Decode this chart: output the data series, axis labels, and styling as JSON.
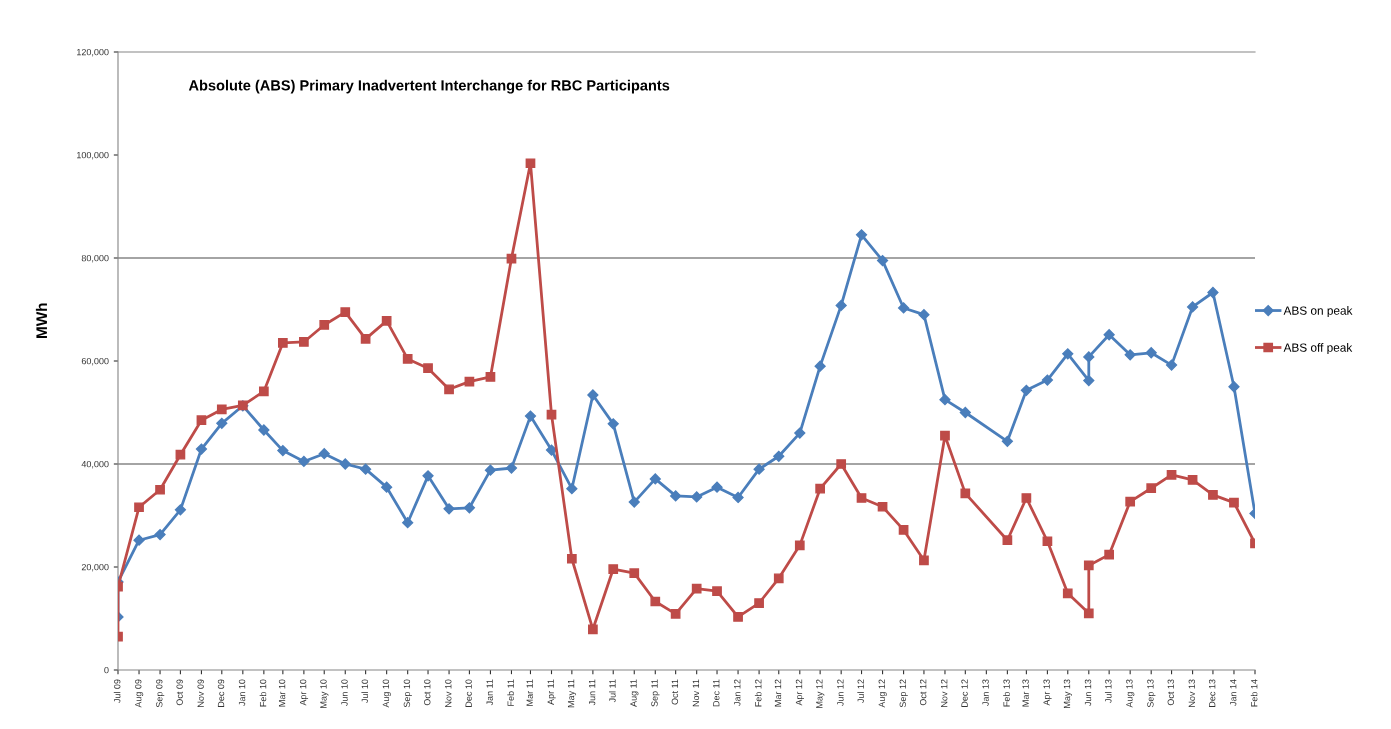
{
  "chart_data": {
    "type": "line",
    "title": "Absolute (ABS) Primary Inadvertent Interchange for RBC Participants",
    "ylabel": "MWh",
    "x": [
      "2009-07",
      "2009-07",
      "2009-08",
      "2009-09",
      "2009-10",
      "2009-11",
      "2009-12",
      "2010-01",
      "2010-02",
      "2010-03",
      "2010-04",
      "2010-05",
      "2010-06",
      "2010-07",
      "2010-08",
      "2010-09",
      "2010-10",
      "2010-11",
      "2010-12",
      "2011-01",
      "2011-02",
      "2011-03",
      "2011-04",
      "2011-05",
      "2011-06",
      "2011-07",
      "2011-08",
      "2011-09",
      "2011-10",
      "2011-11",
      "2011-12",
      "2012-01",
      "2012-02",
      "2012-03",
      "2012-04",
      "2012-05",
      "2012-06",
      "2012-07",
      "2012-08",
      "2012-09",
      "2012-10",
      "2012-11",
      "2012-12",
      "2013-02",
      "2013-03",
      "2013-04",
      "2013-05",
      "2013-06",
      "2013-06",
      "2013-07",
      "2013-08",
      "2013-09",
      "2013-10",
      "2013-11",
      "2013-12",
      "2014-01",
      "2014-02"
    ],
    "series": [
      {
        "name": "ABS on peak",
        "color": "#4a7ebb",
        "marker": "diamond",
        "values": [
          10300,
          17100,
          25200,
          26300,
          31100,
          42900,
          47900,
          51300,
          46600,
          42600,
          40500,
          42000,
          40000,
          39000,
          35500,
          28600,
          37700,
          31300,
          31500,
          38800,
          39200,
          49300,
          42700,
          35200,
          53400,
          47800,
          32600,
          37100,
          33800,
          33600,
          35500,
          33500,
          39000,
          41500,
          46000,
          59000,
          70800,
          84500,
          79500,
          70300,
          69000,
          52500,
          50000,
          44400,
          54300,
          56300,
          61400,
          56200,
          60800,
          65100,
          61200,
          61600,
          59200,
          70500,
          73300,
          55000,
          30400
        ]
      },
      {
        "name": "ABS off peak",
        "color": "#be4b48",
        "marker": "square",
        "values": [
          6500,
          16200,
          31600,
          35000,
          41800,
          48500,
          50600,
          51400,
          54100,
          63500,
          63700,
          67000,
          69500,
          64300,
          67800,
          60400,
          58600,
          54500,
          56000,
          56900,
          79900,
          98400,
          49600,
          21600,
          7900,
          19600,
          18800,
          13300,
          10900,
          15800,
          15300,
          10300,
          13000,
          17800,
          24200,
          35200,
          40000,
          33400,
          31700,
          27200,
          21300,
          45500,
          34300,
          25200,
          33400,
          25000,
          14900,
          11000,
          20300,
          22400,
          32700,
          35300,
          37900,
          36900,
          34000,
          32500,
          24600
        ]
      }
    ],
    "xlim": [
      "2009-07",
      "2014-02"
    ],
    "xticks": [
      {
        "value": "2009-07",
        "label": "Jul 09"
      },
      {
        "value": "2009-08",
        "label": "Aug 09"
      },
      {
        "value": "2009-09",
        "label": "Sep 09"
      },
      {
        "value": "2009-10",
        "label": "Oct 09"
      },
      {
        "value": "2009-11",
        "label": "Nov 09"
      },
      {
        "value": "2009-12",
        "label": "Dec 09"
      },
      {
        "value": "2010-01",
        "label": "Jan 10"
      },
      {
        "value": "2010-02",
        "label": "Feb 10"
      },
      {
        "value": "2010-03",
        "label": "Mar 10"
      },
      {
        "value": "2010-04",
        "label": "Apr 10"
      },
      {
        "value": "2010-05",
        "label": "May 10"
      },
      {
        "value": "2010-06",
        "label": "Jun 10"
      },
      {
        "value": "2010-07",
        "label": "Jul 10"
      },
      {
        "value": "2010-08",
        "label": "Aug 10"
      },
      {
        "value": "2010-09",
        "label": "Sep 10"
      },
      {
        "value": "2010-10",
        "label": "Oct 10"
      },
      {
        "value": "2010-11",
        "label": "Nov 10"
      },
      {
        "value": "2010-12",
        "label": "Dec 10"
      },
      {
        "value": "2011-01",
        "label": "Jan 11"
      },
      {
        "value": "2011-02",
        "label": "Feb 11"
      },
      {
        "value": "2011-03",
        "label": "Mar 11"
      },
      {
        "value": "2011-04",
        "label": "Apr 11"
      },
      {
        "value": "2011-05",
        "label": "May 11"
      },
      {
        "value": "2011-06",
        "label": "Jun 11"
      },
      {
        "value": "2011-07",
        "label": "Jul 11"
      },
      {
        "value": "2011-08",
        "label": "Aug 11"
      },
      {
        "value": "2011-09",
        "label": "Sep 11"
      },
      {
        "value": "2011-10",
        "label": "Oct 11"
      },
      {
        "value": "2011-11",
        "label": "Nov 11"
      },
      {
        "value": "2011-12",
        "label": "Dec 11"
      },
      {
        "value": "2012-01",
        "label": "Jan 12"
      },
      {
        "value": "2012-02",
        "label": "Feb 12"
      },
      {
        "value": "2012-03",
        "label": "Mar 12"
      },
      {
        "value": "2012-04",
        "label": "Apr 12"
      },
      {
        "value": "2012-05",
        "label": "May 12"
      },
      {
        "value": "2012-06",
        "label": "Jun 12"
      },
      {
        "value": "2012-07",
        "label": "Jul 12"
      },
      {
        "value": "2012-08",
        "label": "Aug 12"
      },
      {
        "value": "2012-09",
        "label": "Sep 12"
      },
      {
        "value": "2012-10",
        "label": "Oct 12"
      },
      {
        "value": "2012-11",
        "label": "Nov 12"
      },
      {
        "value": "2012-12",
        "label": "Dec 12"
      },
      {
        "value": "2013-01",
        "label": "Jan 13"
      },
      {
        "value": "2013-02",
        "label": "Feb 13"
      },
      {
        "value": "2013-03",
        "label": "Mar 13"
      },
      {
        "value": "2013-04",
        "label": "Apr 13"
      },
      {
        "value": "2013-05",
        "label": "May 13"
      },
      {
        "value": "2013-06",
        "label": "Jun 13"
      },
      {
        "value": "2013-07",
        "label": "Jul 13"
      },
      {
        "value": "2013-08",
        "label": "Aug 13"
      },
      {
        "value": "2013-09",
        "label": "Sep 13"
      },
      {
        "value": "2013-10",
        "label": "Oct 13"
      },
      {
        "value": "2013-11",
        "label": "Nov 13"
      },
      {
        "value": "2013-12",
        "label": "Dec 13"
      },
      {
        "value": "2014-01",
        "label": "Jan 14"
      },
      {
        "value": "2014-02",
        "label": "Feb 14"
      }
    ],
    "ylim": [
      0,
      120000
    ],
    "yticks": [
      {
        "value": 0,
        "label": "0"
      },
      {
        "value": 20000,
        "label": "20,000"
      },
      {
        "value": 40000,
        "label": "40,000"
      },
      {
        "value": 60000,
        "label": "60,000"
      },
      {
        "value": 80000,
        "label": "80,000"
      },
      {
        "value": 100000,
        "label": "100,000"
      },
      {
        "value": 120000,
        "label": "120,000"
      }
    ],
    "ref_lines": [
      {
        "axis": "y",
        "value": 40000,
        "color": "#868686"
      },
      {
        "axis": "y",
        "value": 80000,
        "color": "#868686"
      }
    ],
    "legend": "right"
  }
}
